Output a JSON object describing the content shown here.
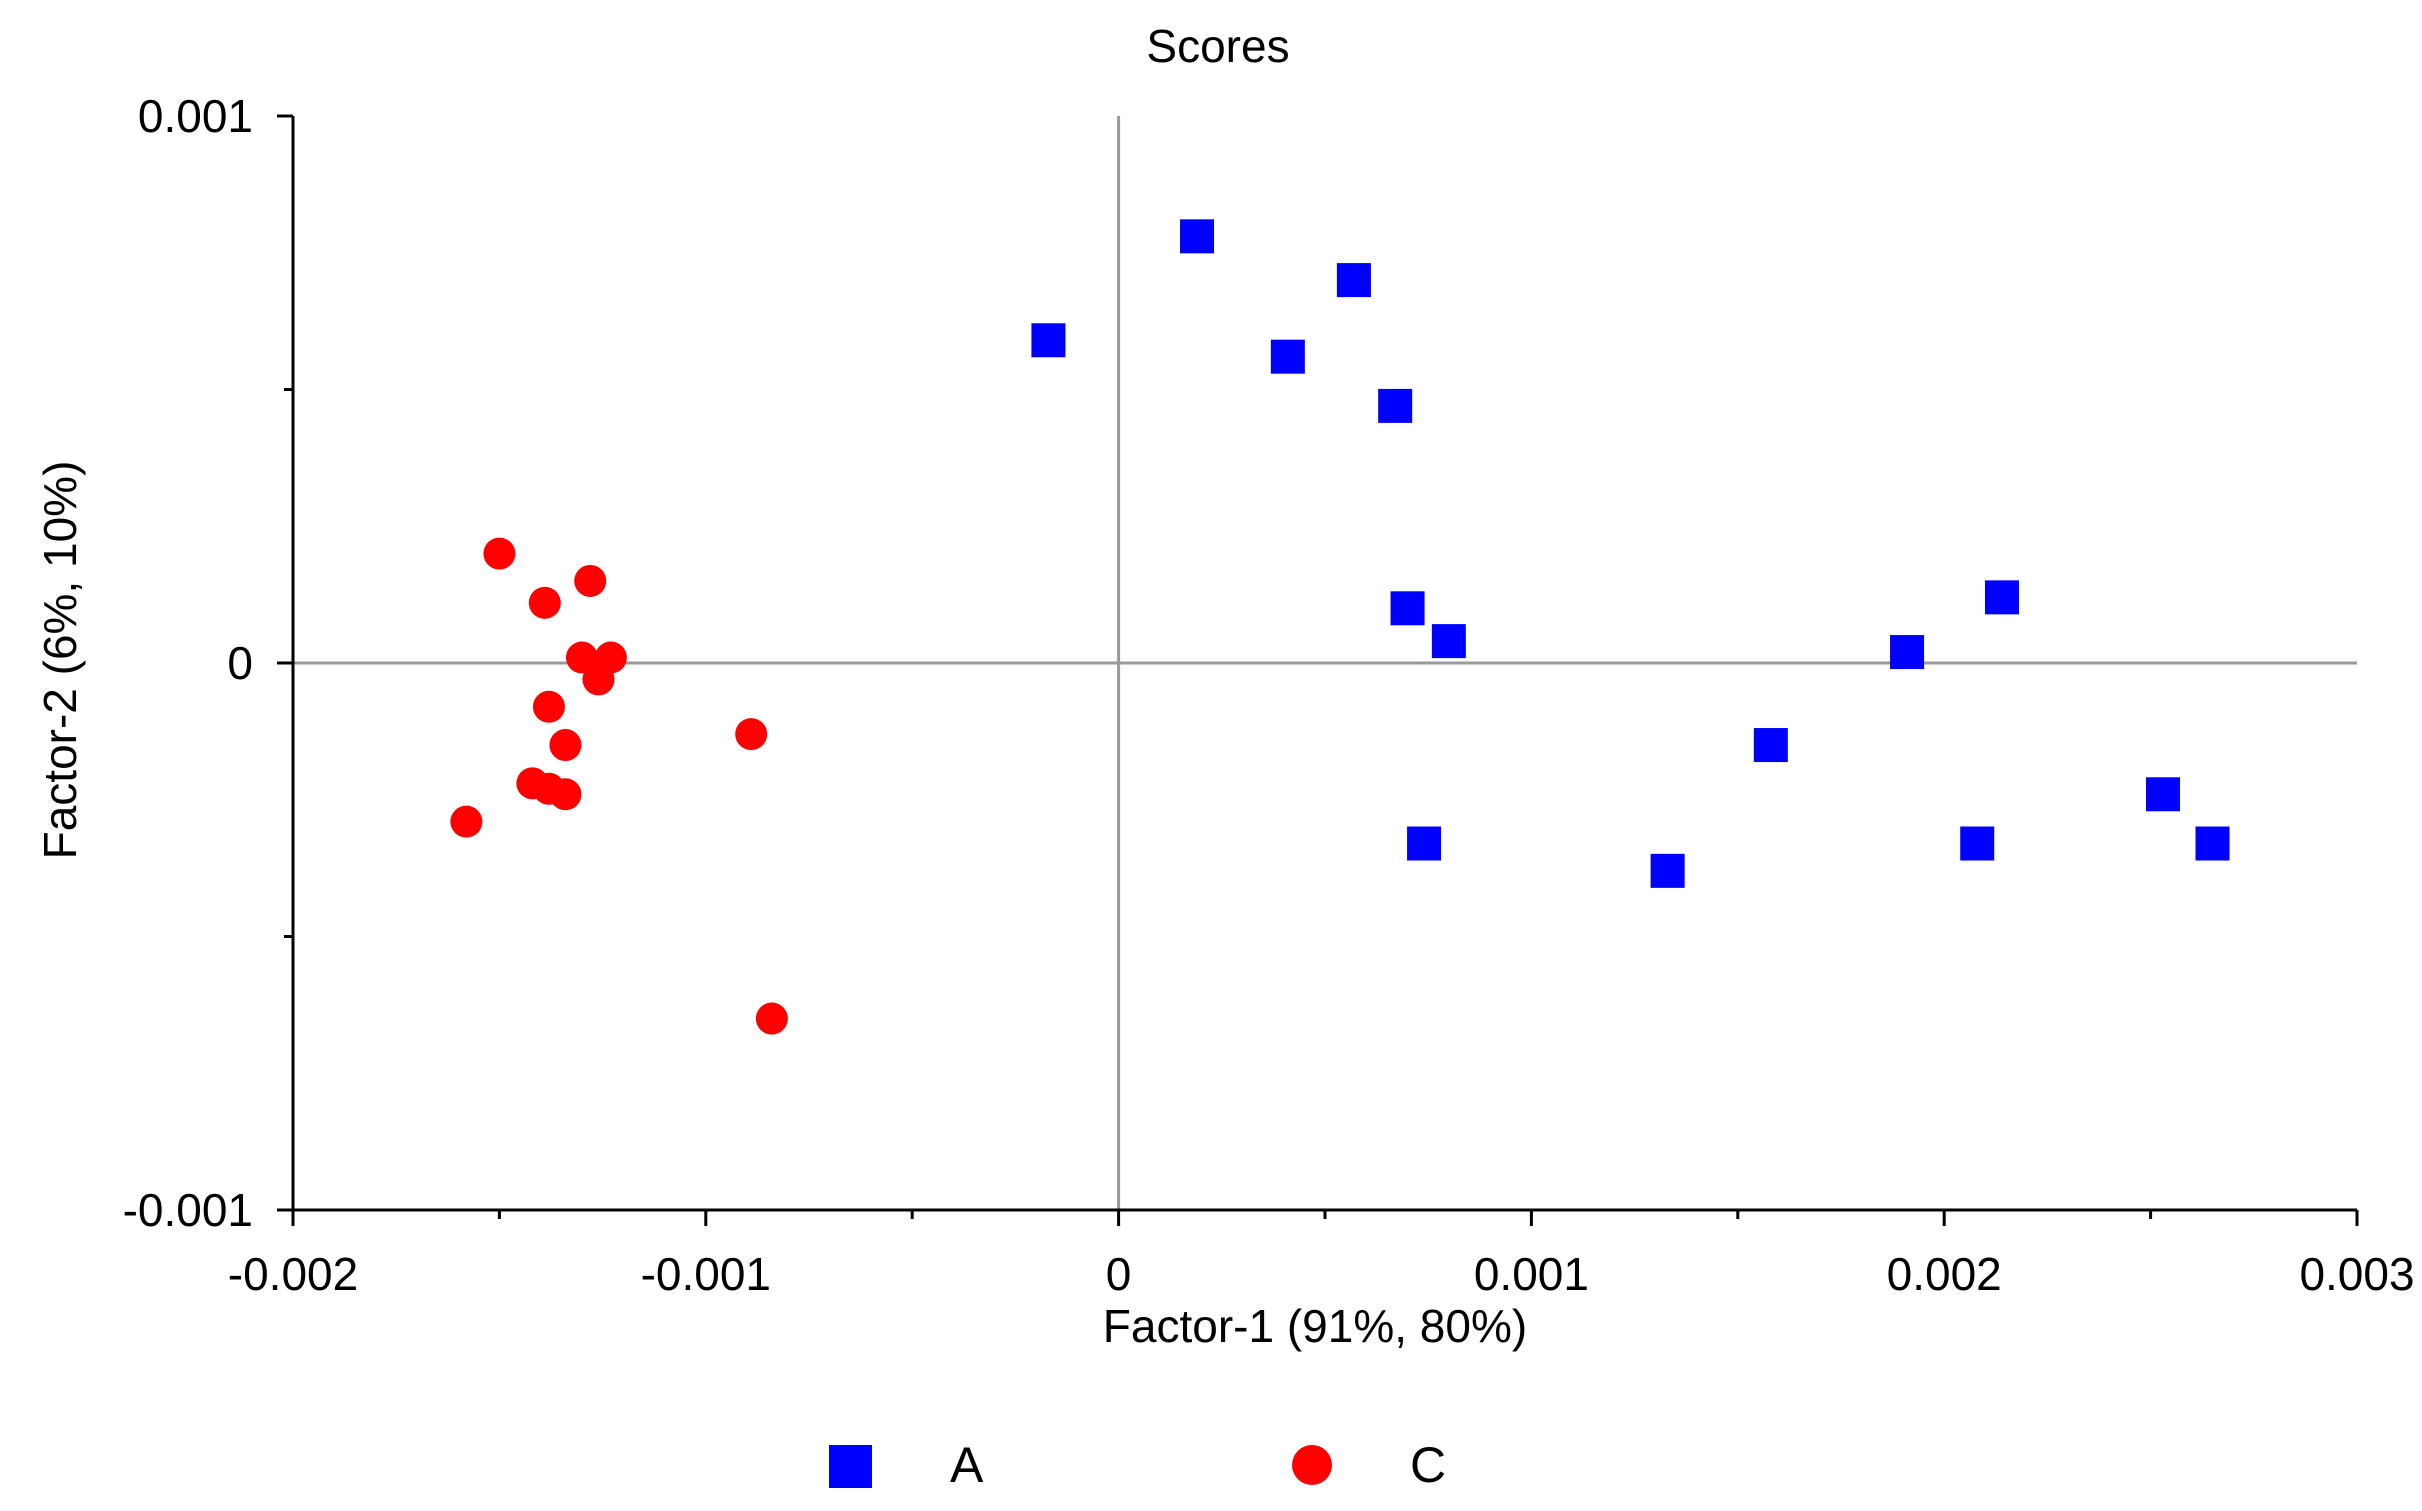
{
  "chart_data": {
    "type": "scatter",
    "title": "Scores",
    "xlabel": "Factor-1 (91%, 80%)",
    "ylabel": "Factor-2 (6%, 10%)",
    "xlim": [
      -0.002,
      0.003
    ],
    "ylim": [
      -0.001,
      0.001
    ],
    "x_ticks": [
      {
        "value": -0.002,
        "label": "-0.002"
      },
      {
        "value": -0.001,
        "label": "-0.001"
      },
      {
        "value": 0,
        "label": "0"
      },
      {
        "value": 0.001,
        "label": "0.001"
      },
      {
        "value": 0.002,
        "label": "0.002"
      },
      {
        "value": 0.003,
        "label": "0.003"
      }
    ],
    "y_ticks": [
      {
        "value": 0.001,
        "label": "0.001"
      },
      {
        "value": 0,
        "label": "0"
      },
      {
        "value": -0.001,
        "label": "-0.001"
      }
    ],
    "zero_lines": true,
    "grid": false,
    "legend_position": "bottom",
    "series": [
      {
        "name": "A",
        "marker": "square",
        "color": "#0000ff",
        "points": [
          {
            "x": 0.00019,
            "y": 0.00078
          },
          {
            "x": 0.00057,
            "y": 0.0007
          },
          {
            "x": -0.00017,
            "y": 0.00059
          },
          {
            "x": 0.00041,
            "y": 0.00056
          },
          {
            "x": 0.00067,
            "y": 0.00047
          },
          {
            "x": 0.0007,
            "y": 0.0001
          },
          {
            "x": 0.0008,
            "y": 4e-05
          },
          {
            "x": 0.00214,
            "y": 0.00012
          },
          {
            "x": 0.00191,
            "y": 2e-05
          },
          {
            "x": 0.00158,
            "y": -0.00015
          },
          {
            "x": 0.00253,
            "y": -0.00024
          },
          {
            "x": 0.00074,
            "y": -0.00033
          },
          {
            "x": 0.00208,
            "y": -0.00033
          },
          {
            "x": 0.00265,
            "y": -0.00033
          },
          {
            "x": 0.00133,
            "y": -0.00038
          }
        ]
      },
      {
        "name": "C",
        "marker": "circle",
        "color": "#ff0000",
        "points": [
          {
            "x": -0.0015,
            "y": 0.0002
          },
          {
            "x": -0.00139,
            "y": 0.00011
          },
          {
            "x": -0.00128,
            "y": 0.00015
          },
          {
            "x": -0.0013,
            "y": 1e-05
          },
          {
            "x": -0.00123,
            "y": 1e-05
          },
          {
            "x": -0.00126,
            "y": -3e-05
          },
          {
            "x": -0.00138,
            "y": -8e-05
          },
          {
            "x": -0.00089,
            "y": -0.00013
          },
          {
            "x": -0.00134,
            "y": -0.00015
          },
          {
            "x": -0.00142,
            "y": -0.00022
          },
          {
            "x": -0.00138,
            "y": -0.00023
          },
          {
            "x": -0.00134,
            "y": -0.00024
          },
          {
            "x": -0.00158,
            "y": -0.00029
          },
          {
            "x": -0.00084,
            "y": -0.00065
          }
        ]
      }
    ]
  }
}
